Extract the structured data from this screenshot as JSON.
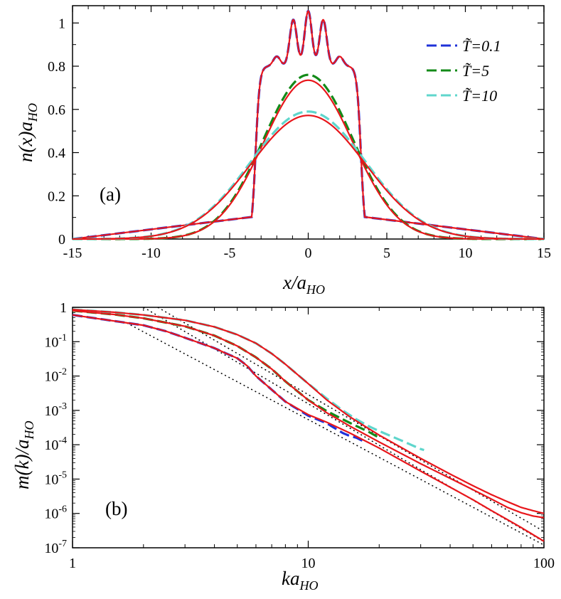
{
  "colors": {
    "blue": "#1f32d8",
    "green": "#138a18",
    "cyan": "#5fd6cc",
    "red": "#e8161b",
    "black": "#000000"
  },
  "chart_data": [
    {
      "type": "line",
      "panel_label": "(a)",
      "xlabel_main": "x/a",
      "xlabel_sub": "HO",
      "ylabel_main": "n(x)a",
      "ylabel_sub": "HO",
      "xlim": [
        -15,
        15
      ],
      "ylim": [
        0,
        1.08
      ],
      "xticks": [
        -15,
        -10,
        -5,
        0,
        5,
        10,
        15
      ],
      "xtick_labels": [
        "-15",
        "-10",
        "-5",
        "0",
        "5",
        "10",
        "15"
      ],
      "yticks": [
        0,
        0.2,
        0.4,
        0.6,
        0.8,
        1
      ],
      "ytick_labels": [
        "0",
        "0.2",
        "0.4",
        "0.6",
        "0.8",
        "1"
      ],
      "legend": [
        {
          "label": "T̃=0.1",
          "color": "blue"
        },
        {
          "label": "T̃=5",
          "color": "green"
        },
        {
          "label": "T̃=10",
          "color": "cyan"
        }
      ],
      "series": [
        {
          "name": "T̃=0.1 (dashed)",
          "color": "blue",
          "style": "dashed",
          "kind": "steps",
          "x_edge": 3.35,
          "x_start": -3.6,
          "x_end": 3.6
        },
        {
          "name": "T̃=0.1 (solid)",
          "color": "red",
          "style": "solid",
          "kind": "steps",
          "x_edge": 3.35,
          "x_start": -3.6,
          "x_end": 3.6
        },
        {
          "name": "T̃=5 (dashed)",
          "color": "green",
          "style": "dashed",
          "kind": "gauss",
          "peak": 0.76,
          "width": 2.85
        },
        {
          "name": "T̃=5 (solid)",
          "color": "red",
          "style": "solid",
          "kind": "gauss",
          "peak": 0.735,
          "width": 2.85
        },
        {
          "name": "T̃=10 (dashed)",
          "color": "cyan",
          "style": "dashed",
          "kind": "gauss",
          "peak": 0.59,
          "width": 3.65
        },
        {
          "name": "T̃=10 (solid)",
          "color": "red",
          "style": "solid",
          "kind": "gauss",
          "peak": 0.572,
          "width": 3.65
        }
      ],
      "step_shape": {
        "base": 0.8,
        "bumps": [
          {
            "x": 0,
            "h": 0.255
          },
          {
            "x": -0.95,
            "h": 0.215
          },
          {
            "x": 0.95,
            "h": 0.215
          },
          {
            "x": -2.0,
            "h": 0.045
          },
          {
            "x": 2.0,
            "h": 0.045
          }
        ],
        "bump_width": 0.32
      }
    },
    {
      "type": "line",
      "scale": "log-log",
      "panel_label": "(b)",
      "xlabel_main": "ka",
      "xlabel_sub": "HO",
      "ylabel_main": "m(k)/a",
      "ylabel_sub": "HO",
      "xlim": [
        1,
        100
      ],
      "ylim": [
        1e-07,
        1
      ],
      "xtick_labels": [
        "1",
        "10",
        "100"
      ],
      "ytick_labels": [
        {
          "mant": "1",
          "exp": ""
        },
        {
          "mant": "10",
          "exp": "-1"
        },
        {
          "mant": "10",
          "exp": "-2"
        },
        {
          "mant": "10",
          "exp": "-3"
        },
        {
          "mant": "10",
          "exp": "-4"
        },
        {
          "mant": "10",
          "exp": "-5"
        },
        {
          "mant": "10",
          "exp": "-6"
        },
        {
          "mant": "10",
          "exp": "-7"
        }
      ],
      "series": [
        {
          "name": "T̃=0.1 (dashed)",
          "color": "blue",
          "style": "dashed",
          "points": [
            [
              1,
              0.6
            ],
            [
              1.5,
              0.4
            ],
            [
              2,
              0.3
            ],
            [
              2.5,
              0.2
            ],
            [
              3,
              0.13
            ],
            [
              4,
              0.065
            ],
            [
              4.5,
              0.045
            ],
            [
              5,
              0.033
            ],
            [
              5.5,
              0.02
            ],
            [
              6,
              0.01
            ],
            [
              7,
              0.004
            ],
            [
              8,
              0.0018
            ],
            [
              10,
              0.0007
            ],
            [
              12,
              0.00042
            ],
            [
              13,
              0.0003
            ],
            [
              14,
              0.00022
            ],
            [
              15,
              0.00018
            ],
            [
              16,
              0.00016
            ],
            [
              17,
              0.00013
            ],
            [
              17.5,
              0.00012
            ]
          ]
        },
        {
          "name": "T̃=0.1 (solid)",
          "color": "red",
          "style": "solid",
          "points": [
            [
              1,
              0.6
            ],
            [
              1.5,
              0.4
            ],
            [
              2,
              0.3
            ],
            [
              2.5,
              0.2
            ],
            [
              3,
              0.13
            ],
            [
              4,
              0.065
            ],
            [
              4.5,
              0.045
            ],
            [
              5,
              0.033
            ],
            [
              5.5,
              0.02
            ],
            [
              6,
              0.01
            ],
            [
              7,
              0.004
            ],
            [
              8,
              0.0018
            ],
            [
              10,
              0.00075
            ],
            [
              12,
              0.00045
            ],
            [
              15,
              0.00022
            ],
            [
              20,
              8e-05
            ],
            [
              30,
              1.7e-05
            ],
            [
              40,
              5.8e-06
            ],
            [
              50,
              2.5e-06
            ],
            [
              60,
              1.2e-06
            ],
            [
              70,
              6.6e-07
            ],
            [
              80,
              3.9e-07
            ],
            [
              90,
              2.4e-07
            ],
            [
              100,
              1.55e-07
            ]
          ]
        },
        {
          "name": "T̃=5 (dashed)",
          "color": "green",
          "style": "dashed",
          "points": [
            [
              1,
              0.8
            ],
            [
              1.5,
              0.62
            ],
            [
              2,
              0.48
            ],
            [
              3,
              0.28
            ],
            [
              4,
              0.15
            ],
            [
              5,
              0.075
            ],
            [
              6,
              0.035
            ],
            [
              7,
              0.016
            ],
            [
              8,
              0.007
            ],
            [
              10,
              0.002
            ],
            [
              12,
              0.00095
            ],
            [
              14,
              0.00055
            ],
            [
              16,
              0.00035
            ],
            [
              18,
              0.00024
            ],
            [
              20,
              0.00016
            ]
          ]
        },
        {
          "name": "T̃=5 (solid)",
          "color": "red",
          "style": "solid",
          "points": [
            [
              1,
              0.8
            ],
            [
              1.5,
              0.62
            ],
            [
              2,
              0.48
            ],
            [
              3,
              0.28
            ],
            [
              4,
              0.15
            ],
            [
              5,
              0.075
            ],
            [
              6,
              0.035
            ],
            [
              7,
              0.016
            ],
            [
              8,
              0.007
            ],
            [
              10,
              0.002
            ],
            [
              12,
              0.00085
            ],
            [
              15,
              0.00035
            ],
            [
              20,
              0.00012
            ],
            [
              30,
              2.8e-05
            ],
            [
              40,
              1.05e-05
            ],
            [
              50,
              4.9e-06
            ],
            [
              60,
              2.6e-06
            ],
            [
              70,
              1.5e-06
            ],
            [
              80,
              1.05e-06
            ],
            [
              90,
              8.4e-07
            ],
            [
              100,
              7.5e-07
            ]
          ]
        },
        {
          "name": "T̃=10 (dashed)",
          "color": "cyan",
          "style": "dashed",
          "points": [
            [
              1,
              0.86
            ],
            [
              1.5,
              0.72
            ],
            [
              2,
              0.6
            ],
            [
              3,
              0.42
            ],
            [
              4,
              0.27
            ],
            [
              5,
              0.16
            ],
            [
              6,
              0.09
            ],
            [
              7,
              0.045
            ],
            [
              8,
              0.022
            ],
            [
              10,
              0.006
            ],
            [
              12,
              0.0022
            ],
            [
              14,
              0.001
            ],
            [
              16,
              0.00055
            ],
            [
              18,
              0.00035
            ],
            [
              20,
              0.00025
            ],
            [
              25,
              0.00013
            ],
            [
              30,
              7.5e-05
            ],
            [
              31,
              7e-05
            ]
          ]
        },
        {
          "name": "T̃=10 (solid)",
          "color": "red",
          "style": "solid",
          "points": [
            [
              1,
              0.86
            ],
            [
              1.5,
              0.72
            ],
            [
              2,
              0.6
            ],
            [
              3,
              0.42
            ],
            [
              4,
              0.27
            ],
            [
              5,
              0.16
            ],
            [
              6,
              0.09
            ],
            [
              7,
              0.045
            ],
            [
              8,
              0.022
            ],
            [
              10,
              0.006
            ],
            [
              12,
              0.002
            ],
            [
              15,
              0.00065
            ],
            [
              20,
              0.00019
            ],
            [
              30,
              4e-05
            ],
            [
              40,
              1.4e-05
            ],
            [
              50,
              6.4e-06
            ],
            [
              60,
              3.5e-06
            ],
            [
              70,
              2.2e-06
            ],
            [
              80,
              1.5e-06
            ],
            [
              90,
              1.2e-06
            ],
            [
              100,
              1e-06
            ]
          ]
        },
        {
          "name": "asymptote 1 (dotted)",
          "color": "black",
          "style": "dotted",
          "points": [
            [
              2.0,
              1.0
            ],
            [
              100,
              1.5e-07
            ]
          ]
        },
        {
          "name": "asymptote 2 (dotted)",
          "color": "black",
          "style": "dotted",
          "points": [
            [
              2.3,
              1.0
            ],
            [
              100,
              3e-07
            ]
          ]
        },
        {
          "name": "asymptote 3 (dotted)",
          "color": "black",
          "style": "dotted",
          "points": [
            [
              1.7,
              0.35
            ],
            [
              100,
              1.2e-07
            ]
          ]
        }
      ]
    }
  ]
}
